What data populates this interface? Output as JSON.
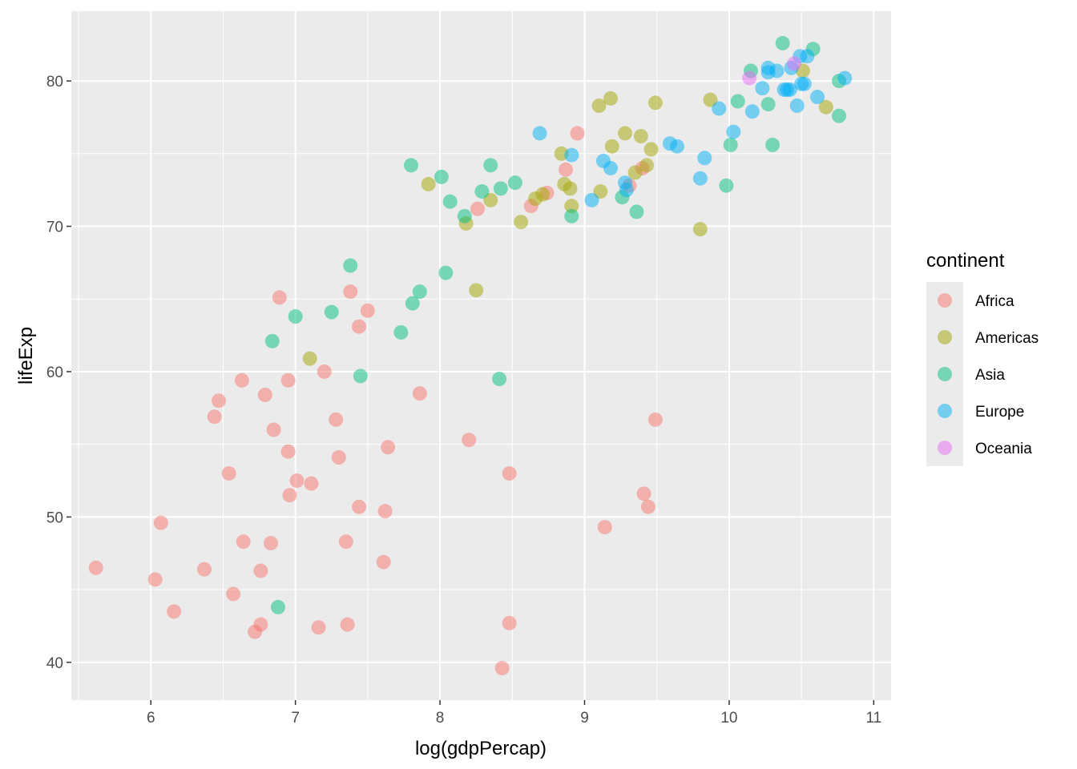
{
  "chart_data": {
    "type": "scatter",
    "xlabel": "log(gdpPercap)",
    "ylabel": "lifeExp",
    "xlim": [
      5.45,
      11.12
    ],
    "ylim": [
      37.4,
      84.8
    ],
    "xticks": [
      6,
      7,
      8,
      9,
      10,
      11
    ],
    "yticks": [
      40,
      50,
      60,
      70,
      80
    ],
    "grid": true,
    "legend": {
      "title": "continent",
      "position": "right",
      "entries": [
        {
          "name": "Africa",
          "color": "#F8766D"
        },
        {
          "name": "Americas",
          "color": "#A3A500"
        },
        {
          "name": "Asia",
          "color": "#00BF7D"
        },
        {
          "name": "Europe",
          "color": "#00B0F6"
        },
        {
          "name": "Oceania",
          "color": "#E76BF3"
        }
      ]
    },
    "point_alpha": 0.5,
    "series": [
      {
        "name": "Africa",
        "color": "#F8766D",
        "points": [
          [
            5.62,
            46.5
          ],
          [
            6.03,
            45.7
          ],
          [
            6.07,
            49.6
          ],
          [
            6.16,
            43.5
          ],
          [
            6.37,
            46.4
          ],
          [
            6.44,
            56.9
          ],
          [
            6.47,
            58.0
          ],
          [
            6.54,
            53.0
          ],
          [
            6.57,
            44.7
          ],
          [
            6.63,
            59.4
          ],
          [
            6.64,
            48.3
          ],
          [
            6.72,
            42.1
          ],
          [
            6.76,
            42.6
          ],
          [
            6.76,
            46.3
          ],
          [
            6.79,
            58.4
          ],
          [
            6.83,
            48.2
          ],
          [
            6.85,
            56.0
          ],
          [
            6.89,
            65.1
          ],
          [
            6.95,
            54.5
          ],
          [
            6.95,
            59.4
          ],
          [
            6.96,
            51.5
          ],
          [
            7.01,
            52.5
          ],
          [
            7.11,
            52.3
          ],
          [
            7.16,
            42.4
          ],
          [
            7.2,
            60.0
          ],
          [
            7.28,
            56.7
          ],
          [
            7.3,
            54.1
          ],
          [
            7.35,
            48.3
          ],
          [
            7.36,
            42.6
          ],
          [
            7.38,
            65.5
          ],
          [
            7.44,
            63.1
          ],
          [
            7.44,
            50.7
          ],
          [
            7.5,
            64.2
          ],
          [
            7.61,
            46.9
          ],
          [
            7.62,
            50.4
          ],
          [
            7.64,
            54.8
          ],
          [
            7.86,
            58.5
          ],
          [
            8.2,
            55.3
          ],
          [
            8.26,
            71.2
          ],
          [
            8.43,
            39.6
          ],
          [
            8.48,
            53.0
          ],
          [
            8.48,
            42.7
          ],
          [
            8.63,
            71.4
          ],
          [
            8.74,
            72.3
          ],
          [
            8.87,
            73.9
          ],
          [
            8.95,
            76.4
          ],
          [
            9.14,
            49.3
          ],
          [
            9.31,
            72.8
          ],
          [
            9.4,
            74.0
          ],
          [
            9.41,
            51.6
          ],
          [
            9.44,
            50.7
          ],
          [
            9.49,
            56.7
          ]
        ]
      },
      {
        "name": "Americas",
        "color": "#A3A500",
        "points": [
          [
            7.1,
            60.9
          ],
          [
            7.92,
            72.9
          ],
          [
            8.18,
            70.2
          ],
          [
            8.25,
            65.6
          ],
          [
            8.35,
            71.8
          ],
          [
            8.56,
            70.3
          ],
          [
            8.66,
            71.9
          ],
          [
            8.71,
            72.2
          ],
          [
            8.84,
            75.0
          ],
          [
            8.86,
            72.9
          ],
          [
            8.9,
            72.6
          ],
          [
            8.91,
            71.4
          ],
          [
            9.1,
            78.3
          ],
          [
            9.11,
            72.4
          ],
          [
            9.18,
            78.8
          ],
          [
            9.19,
            75.5
          ],
          [
            9.28,
            76.4
          ],
          [
            9.35,
            73.7
          ],
          [
            9.39,
            76.2
          ],
          [
            9.43,
            74.2
          ],
          [
            9.46,
            75.3
          ],
          [
            9.49,
            78.5
          ],
          [
            9.8,
            69.8
          ],
          [
            9.87,
            78.7
          ],
          [
            10.51,
            80.7
          ],
          [
            10.67,
            78.2
          ]
        ]
      },
      {
        "name": "Asia",
        "color": "#00BF7D",
        "points": [
          [
            6.84,
            62.1
          ],
          [
            6.88,
            43.8
          ],
          [
            7.0,
            63.8
          ],
          [
            7.25,
            64.1
          ],
          [
            7.38,
            67.3
          ],
          [
            7.45,
            59.7
          ],
          [
            7.73,
            62.7
          ],
          [
            7.81,
            64.7
          ],
          [
            7.8,
            74.2
          ],
          [
            7.86,
            65.5
          ],
          [
            8.01,
            73.4
          ],
          [
            8.04,
            66.8
          ],
          [
            8.07,
            71.7
          ],
          [
            8.17,
            70.7
          ],
          [
            8.29,
            72.4
          ],
          [
            8.35,
            74.2
          ],
          [
            8.41,
            59.5
          ],
          [
            8.42,
            72.6
          ],
          [
            8.52,
            73.0
          ],
          [
            8.91,
            70.7
          ],
          [
            9.26,
            72.0
          ],
          [
            9.36,
            71.0
          ],
          [
            10.01,
            75.6
          ],
          [
            9.98,
            72.8
          ],
          [
            10.06,
            78.6
          ],
          [
            10.15,
            80.7
          ],
          [
            10.27,
            78.4
          ],
          [
            10.3,
            75.6
          ],
          [
            10.37,
            82.6
          ],
          [
            10.58,
            82.2
          ],
          [
            10.76,
            80.0
          ],
          [
            10.76,
            77.6
          ]
        ]
      },
      {
        "name": "Europe",
        "color": "#00B0F6",
        "points": [
          [
            8.69,
            76.4
          ],
          [
            8.91,
            74.9
          ],
          [
            9.05,
            71.8
          ],
          [
            9.13,
            74.5
          ],
          [
            9.18,
            74.0
          ],
          [
            9.28,
            73.0
          ],
          [
            9.29,
            72.5
          ],
          [
            9.59,
            75.7
          ],
          [
            9.64,
            75.5
          ],
          [
            9.8,
            73.3
          ],
          [
            9.83,
            74.7
          ],
          [
            9.93,
            78.1
          ],
          [
            10.03,
            76.5
          ],
          [
            10.16,
            77.9
          ],
          [
            10.23,
            79.5
          ],
          [
            10.27,
            80.6
          ],
          [
            10.27,
            80.9
          ],
          [
            10.33,
            80.7
          ],
          [
            10.38,
            79.4
          ],
          [
            10.4,
            79.4
          ],
          [
            10.42,
            79.4
          ],
          [
            10.43,
            80.9
          ],
          [
            10.47,
            78.3
          ],
          [
            10.49,
            81.7
          ],
          [
            10.5,
            79.8
          ],
          [
            10.52,
            79.8
          ],
          [
            10.54,
            81.7
          ],
          [
            10.61,
            78.9
          ],
          [
            10.8,
            80.2
          ]
        ]
      },
      {
        "name": "Oceania",
        "color": "#E76BF3",
        "points": [
          [
            10.14,
            80.2
          ],
          [
            10.45,
            81.2
          ]
        ]
      }
    ]
  }
}
